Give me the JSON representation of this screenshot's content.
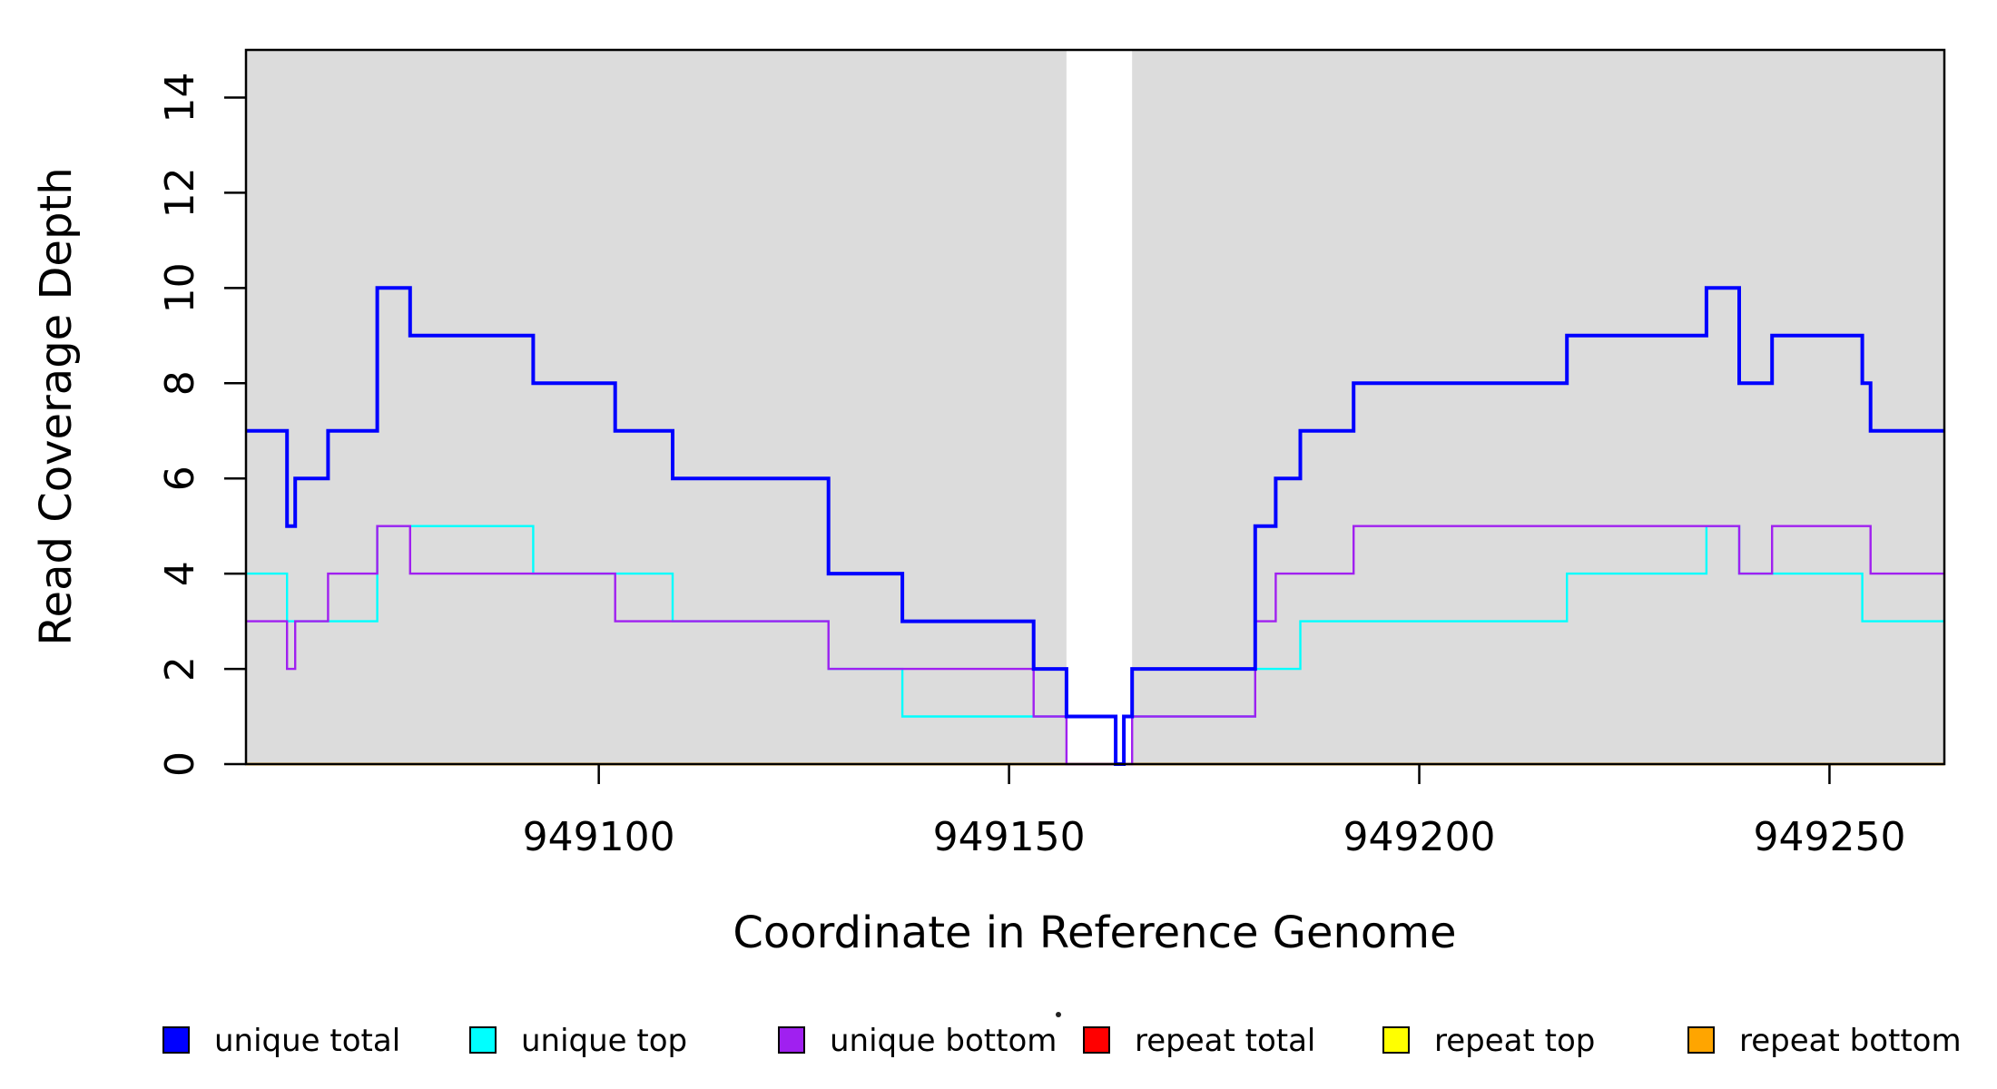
{
  "chart_data": {
    "type": "line",
    "subtype": "step-post-coverage-plot",
    "title": "",
    "xlabel": "Coordinate in Reference Genome",
    "ylabel": "Read Coverage Depth",
    "xlim": [
      949057,
      949264
    ],
    "ylim": [
      0,
      15
    ],
    "x_ticks": [
      "949100",
      "949150",
      "949200",
      "949250"
    ],
    "x_tick_values": [
      949100,
      949150,
      949200,
      949250
    ],
    "y_ticks": [
      "0",
      "2",
      "4",
      "6",
      "8",
      "10",
      "12",
      "14"
    ],
    "y_tick_values": [
      0,
      2,
      4,
      6,
      8,
      10,
      12,
      14
    ],
    "grid": "off",
    "panel_background_color": "#DCDCDC",
    "shaded_regions": [
      {
        "x0": 949057,
        "x1": 949157
      },
      {
        "x0": 949165,
        "x1": 949264
      }
    ],
    "series": [
      {
        "name": "repeat total",
        "color": "#FF0000",
        "width": 2.4,
        "steps": [
          [
            949057,
            0
          ],
          [
            949264,
            0
          ]
        ]
      },
      {
        "name": "repeat top",
        "color": "#FFFF00",
        "width": 2.4,
        "steps": [
          [
            949057,
            0
          ],
          [
            949264,
            0
          ]
        ]
      },
      {
        "name": "repeat bottom",
        "color": "#FFA500",
        "width": 2.6,
        "steps": [
          [
            949057,
            0
          ],
          [
            949264,
            0
          ]
        ]
      },
      {
        "name": "unique top",
        "color": "#00FFFF",
        "width": 2.4,
        "steps": [
          [
            949057,
            4
          ],
          [
            949062,
            3
          ],
          [
            949073,
            5
          ],
          [
            949092,
            4
          ],
          [
            949109,
            3
          ],
          [
            949128,
            2
          ],
          [
            949137,
            1
          ],
          [
            949163,
            0
          ],
          [
            949164,
            1
          ],
          [
            949180,
            2
          ],
          [
            949185.5,
            3
          ],
          [
            949218,
            4
          ],
          [
            949235,
            5
          ],
          [
            949239,
            4
          ],
          [
            949254,
            3
          ],
          [
            949264,
            3
          ]
        ]
      },
      {
        "name": "unique bottom",
        "color": "#A020F0",
        "width": 2.4,
        "steps": [
          [
            949057,
            3
          ],
          [
            949062,
            2
          ],
          [
            949063,
            3
          ],
          [
            949067,
            4
          ],
          [
            949073,
            5
          ],
          [
            949077,
            4
          ],
          [
            949102,
            3
          ],
          [
            949128,
            2
          ],
          [
            949153,
            1
          ],
          [
            949157,
            0
          ],
          [
            949165,
            1
          ],
          [
            949180,
            3
          ],
          [
            949182.5,
            4
          ],
          [
            949192,
            5
          ],
          [
            949239,
            4
          ],
          [
            949243,
            5
          ],
          [
            949255,
            4
          ],
          [
            949264,
            4
          ]
        ]
      },
      {
        "name": "unique total",
        "color": "#0000FF",
        "width": 4,
        "steps": [
          [
            949057,
            7
          ],
          [
            949062,
            5
          ],
          [
            949063,
            6
          ],
          [
            949067,
            7
          ],
          [
            949073,
            10
          ],
          [
            949077,
            9
          ],
          [
            949092,
            8
          ],
          [
            949102,
            7
          ],
          [
            949109,
            6
          ],
          [
            949128,
            4
          ],
          [
            949137,
            3
          ],
          [
            949153,
            2
          ],
          [
            949157,
            1
          ],
          [
            949163,
            0
          ],
          [
            949164,
            1
          ],
          [
            949165,
            2
          ],
          [
            949180,
            5
          ],
          [
            949182.5,
            6
          ],
          [
            949185.5,
            7
          ],
          [
            949192,
            8
          ],
          [
            949218,
            9
          ],
          [
            949235,
            10
          ],
          [
            949239,
            8
          ],
          [
            949243,
            9
          ],
          [
            949254,
            8
          ],
          [
            949255,
            7
          ],
          [
            949264,
            7
          ]
        ]
      }
    ],
    "legend_position": "bottom",
    "legend": [
      {
        "label": "unique total",
        "color": "#0000FF"
      },
      {
        "label": "unique top",
        "color": "#00FFFF"
      },
      {
        "label": "unique bottom",
        "color": "#A020F0"
      },
      {
        "label": "repeat total",
        "color": "#FF0000"
      },
      {
        "label": "repeat top",
        "color": "#FFFF00"
      },
      {
        "label": "repeat bottom",
        "color": "#FFA500"
      }
    ]
  }
}
